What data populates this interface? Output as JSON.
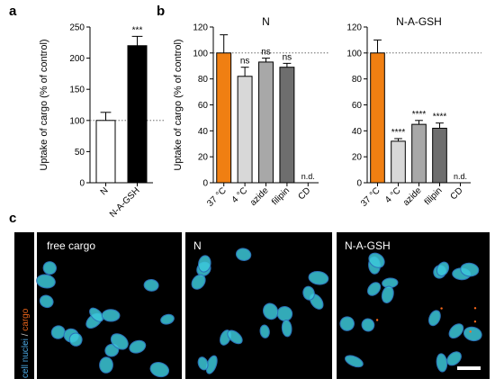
{
  "panel_letters": {
    "a": "a",
    "b": "b",
    "c": "c"
  },
  "colors": {
    "orange": "#f07f12",
    "light_gray": "#d8d8d8",
    "mid_gray": "#a8a8a8",
    "dark_gray": "#6e6e6e",
    "black": "#000000",
    "white": "#ffffff",
    "nuclei": "#3cc8d8",
    "cargo": "#ff6a1a"
  },
  "chart_data": [
    {
      "type": "bar",
      "panel": "a",
      "categories": [
        "N",
        "N-A-GSH"
      ],
      "values": [
        100,
        220
      ],
      "errors": [
        13,
        15
      ],
      "fills": [
        "white",
        "black"
      ],
      "sig_labels": [
        "",
        "***"
      ],
      "ylabel": "Uptake of cargo (% of control)",
      "ylim": [
        0,
        250
      ],
      "yticks": [
        0,
        50,
        100,
        150,
        200,
        250
      ],
      "reference_line": 100
    },
    {
      "type": "bar",
      "panel": "b",
      "title": "N",
      "categories": [
        "37 °C",
        "4 °C",
        "azide",
        "filipin",
        "CD"
      ],
      "values": [
        100,
        82,
        93,
        89,
        null
      ],
      "errors": [
        14,
        7,
        3,
        3,
        null
      ],
      "fills": [
        "orange",
        "light_gray",
        "mid_gray",
        "dark_gray",
        "none"
      ],
      "sig_labels": [
        "",
        "ns",
        "ns",
        "ns",
        "n.d."
      ],
      "ylabel": "Uptake of cargo (% of control)",
      "ylim": [
        0,
        120
      ],
      "yticks": [
        0,
        20,
        40,
        60,
        80,
        100,
        120
      ],
      "reference_line": 100
    },
    {
      "type": "bar",
      "panel": "b",
      "title": "N-A-GSH",
      "categories": [
        "37 °C",
        "4 °C",
        "azide",
        "filipin",
        "CD"
      ],
      "values": [
        100,
        32,
        45,
        42,
        null
      ],
      "errors": [
        10,
        2,
        3,
        4,
        null
      ],
      "fills": [
        "orange",
        "light_gray",
        "mid_gray",
        "dark_gray",
        "none"
      ],
      "sig_labels": [
        "",
        "****",
        "****",
        "****",
        "n.d."
      ],
      "ylim": [
        0,
        120
      ],
      "yticks": [
        0,
        20,
        40,
        60,
        80,
        100,
        120
      ],
      "reference_line": 100
    }
  ],
  "microscopy": {
    "side_label_part1": "cell nuclei",
    "side_label_sep": " / ",
    "side_label_part2": "cargo",
    "panels": [
      {
        "label": "free cargo"
      },
      {
        "label": "N"
      },
      {
        "label": "N-A-GSH"
      }
    ]
  }
}
